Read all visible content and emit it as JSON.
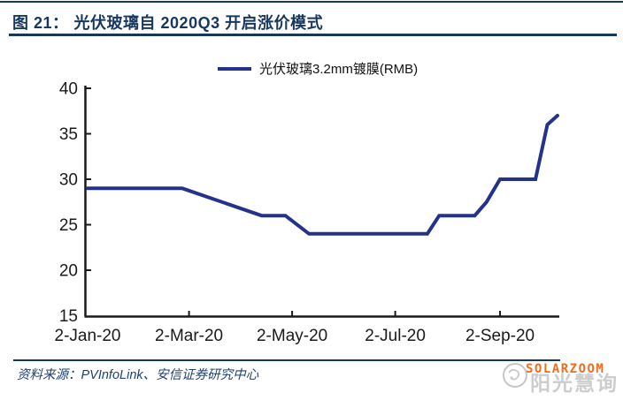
{
  "figure": {
    "label": "图 21：",
    "title": "光伏玻璃自 2020Q3 开启涨价模式"
  },
  "legend": {
    "series_label": "光伏玻璃3.2mm镀膜(RMB)"
  },
  "source": {
    "text": "资料来源：PVInfoLink、安信证券研究中心"
  },
  "watermark": {
    "brand": "SOLARZOOM",
    "cjk": "阳光慧询",
    "brand_color": "#EE6E1E"
  },
  "colors": {
    "accent_navy": "#17375E",
    "line": "#24328A",
    "axis": "#1a1a1a"
  },
  "chart_data": {
    "type": "line",
    "title": "光伏玻璃自 2020Q3 开启涨价模式",
    "xlabel": "",
    "ylabel": "",
    "grid": false,
    "legend_position": "top-center",
    "ylim": [
      15,
      40
    ],
    "y_ticks": [
      40,
      35,
      30,
      25,
      20,
      15
    ],
    "x_tick_labels": [
      "2-Jan-20",
      "2-Mar-20",
      "2-May-20",
      "2-Jul-20",
      "2-Sep-20"
    ],
    "x_tick_days": [
      0,
      60,
      121,
      182,
      244
    ],
    "xlim_days": [
      0,
      282
    ],
    "series": [
      {
        "name": "光伏玻璃3.2mm镀膜(RMB)",
        "color": "#24328A",
        "points": [
          {
            "date": "2-Jan-20",
            "day": 0,
            "value": 29
          },
          {
            "date": "27-Feb-20",
            "day": 56,
            "value": 29
          },
          {
            "date": "14-Apr-20",
            "day": 103,
            "value": 26
          },
          {
            "date": "28-Apr-20",
            "day": 117,
            "value": 26
          },
          {
            "date": "12-May-20",
            "day": 131,
            "value": 24
          },
          {
            "date": "21-Jul-20",
            "day": 201,
            "value": 24
          },
          {
            "date": "28-Jul-20",
            "day": 208,
            "value": 26
          },
          {
            "date": "18-Aug-20",
            "day": 229,
            "value": 26
          },
          {
            "date": "25-Aug-20",
            "day": 236,
            "value": 27.5
          },
          {
            "date": "2-Sep-20",
            "day": 244,
            "value": 30
          },
          {
            "date": "23-Sep-20",
            "day": 265,
            "value": 30
          },
          {
            "date": "30-Sep-20",
            "day": 272,
            "value": 36
          },
          {
            "date": "6-Oct-20",
            "day": 278,
            "value": 37
          }
        ]
      }
    ]
  }
}
